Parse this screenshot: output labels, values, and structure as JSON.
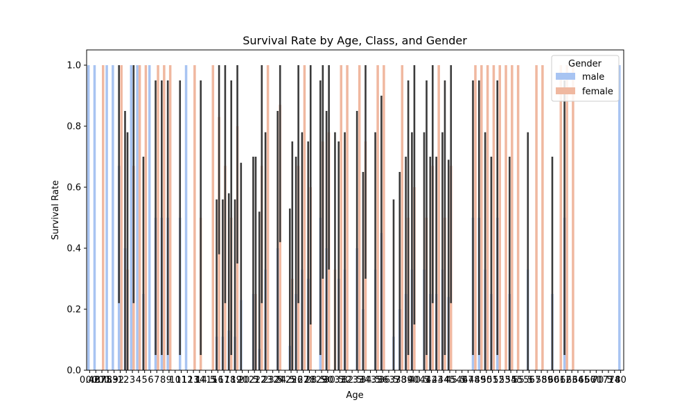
{
  "chart_data": {
    "type": "bar",
    "title": "Survival Rate by Age, Class, and Gender",
    "xlabel": "Age",
    "ylabel": "Survival Rate",
    "ylim": [
      0,
      1.05
    ],
    "yticks": [
      "0.0",
      "0.2",
      "0.4",
      "0.6",
      "0.8",
      "1.0"
    ],
    "legend": {
      "title": "Gender",
      "position": "top-right",
      "entries": [
        {
          "label": "male",
          "color": "#a8c4f2"
        },
        {
          "label": "female",
          "color": "#f0b8a0"
        }
      ]
    },
    "error_bar_color": "#3a3a3a",
    "categories": [
      "0.42",
      "0.67",
      "0.75",
      "0.83",
      "0.92",
      "1",
      "2",
      "3",
      "4",
      "5",
      "6",
      "7",
      "8",
      "9",
      "10",
      "11",
      "12",
      "13",
      "14",
      "14.5",
      "15",
      "16",
      "17",
      "18",
      "19",
      "20",
      "20.5",
      "21",
      "22",
      "23",
      "23.5",
      "24",
      "24.5",
      "25",
      "26",
      "27",
      "28",
      "28.5",
      "29",
      "30",
      "30.5",
      "31",
      "32",
      "32.5",
      "33",
      "34",
      "34.5",
      "35",
      "36",
      "36.5",
      "37",
      "38",
      "39",
      "40",
      "40.5",
      "41",
      "42",
      "43",
      "44",
      "45",
      "45.5",
      "46",
      "47",
      "48",
      "49",
      "50",
      "51",
      "52",
      "53",
      "54",
      "55",
      "55.5",
      "56",
      "57",
      "58",
      "59",
      "60",
      "61",
      "62",
      "63",
      "64",
      "65",
      "66",
      "70",
      "70.5",
      "71",
      "74",
      "80"
    ],
    "series": [
      {
        "name": "male",
        "values": [
          1,
          1,
          0,
          1,
          1,
          0.67,
          0.4,
          1,
          1,
          0.25,
          1,
          0.5,
          0.5,
          0.5,
          0,
          0.5,
          1,
          0,
          0,
          0,
          0,
          0.11,
          0.11,
          0.13,
          0.11,
          0.23,
          0,
          0.25,
          0.07,
          0.33,
          0,
          0.4,
          0,
          0.08,
          0.25,
          0.33,
          0.3,
          0,
          0.5,
          0.4,
          0,
          0.3,
          0.33,
          0,
          0.4,
          0.2,
          0,
          0.33,
          0.45,
          0,
          0.11,
          0.2,
          0.25,
          0.33,
          0,
          0.33,
          0.25,
          0.25,
          0.33,
          0.24,
          0,
          0,
          0,
          0.5,
          0.5,
          0.33,
          0.25,
          0.5,
          0,
          0.25,
          0,
          0,
          0.33,
          0,
          0,
          0,
          0.25,
          0,
          0.5,
          0,
          0,
          0,
          0,
          0,
          0,
          0,
          0,
          1
        ]
      },
      {
        "name": "female",
        "values": [
          0,
          0,
          1,
          0,
          0,
          1,
          0.33,
          0.67,
          1,
          1,
          0,
          1,
          1,
          1,
          0,
          0,
          0,
          1,
          0.5,
          0,
          1,
          0.83,
          0.67,
          0.5,
          0.8,
          0,
          0,
          0.25,
          0.67,
          1,
          0,
          0.87,
          0,
          0.3,
          0.67,
          1,
          0.6,
          0,
          0.75,
          0.78,
          0.33,
          1,
          1,
          0,
          1,
          0.75,
          0,
          1,
          1,
          0,
          0,
          1,
          0.5,
          0.6,
          0,
          0.5,
          0.67,
          1,
          0.5,
          0.67,
          0,
          0,
          0,
          1,
          1,
          1,
          1,
          1,
          1,
          1,
          1,
          0,
          0,
          1,
          1,
          0,
          0,
          1,
          1,
          1,
          0,
          0,
          0,
          0,
          0,
          0,
          0,
          0
        ]
      }
    ]
  }
}
